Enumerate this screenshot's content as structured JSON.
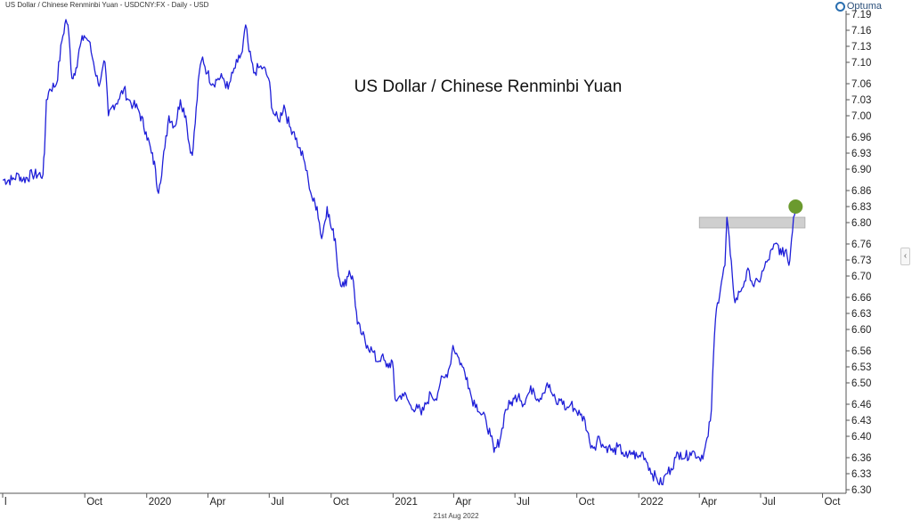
{
  "header": {
    "series_caption": "US Dollar / Chinese Renminbi Yuan - USDCNY:FX - Daily - USD",
    "brand": "Optuma",
    "brand_icon": "optuma-logo-icon"
  },
  "footer": {
    "date": "21st Aug 2022"
  },
  "colors": {
    "line": "#1f1fd8",
    "marker": "#6b9a2e",
    "resistance_band": "#cfcfcf",
    "axis": "#555555"
  },
  "chart_data": {
    "type": "line",
    "title": "US Dollar / Chinese Renminbi Yuan",
    "xlabel": "",
    "ylabel": "",
    "grid": false,
    "legend": "none",
    "ylim": [
      6.3,
      7.19
    ],
    "xlim": [
      "2019-06-01",
      "2022-11-05"
    ],
    "y_ticks": [
      "7.19",
      "7.16",
      "7.13",
      "7.10",
      "7.06",
      "7.03",
      "7.00",
      "6.96",
      "6.93",
      "6.90",
      "6.86",
      "6.83",
      "6.80",
      "6.76",
      "6.73",
      "6.70",
      "6.66",
      "6.63",
      "6.60",
      "6.56",
      "6.53",
      "6.50",
      "6.46",
      "6.43",
      "6.40",
      "6.36",
      "6.33",
      "6.30"
    ],
    "x_ticks": [
      {
        "label": "l",
        "date": "2019-06-01"
      },
      {
        "label": "Oct",
        "date": "2019-10-01"
      },
      {
        "label": "2020",
        "date": "2020-01-01"
      },
      {
        "label": "Apr",
        "date": "2020-04-01"
      },
      {
        "label": "Jul",
        "date": "2020-07-01"
      },
      {
        "label": "Oct",
        "date": "2020-10-01"
      },
      {
        "label": "2021",
        "date": "2021-01-01"
      },
      {
        "label": "Apr",
        "date": "2021-04-01"
      },
      {
        "label": "Jul",
        "date": "2021-07-01"
      },
      {
        "label": "Oct",
        "date": "2021-10-01"
      },
      {
        "label": "2022",
        "date": "2022-01-01"
      },
      {
        "label": "Apr",
        "date": "2022-04-01"
      },
      {
        "label": "Jul",
        "date": "2022-07-01"
      },
      {
        "label": "Oct",
        "date": "2022-10-01"
      }
    ],
    "series": [
      {
        "points": [
          [
            "2019-06-01",
            6.88
          ],
          [
            "2019-06-15",
            6.88
          ],
          [
            "2019-06-25",
            6.89
          ],
          [
            "2019-07-01",
            6.88
          ],
          [
            "2019-07-15",
            6.89
          ],
          [
            "2019-07-31",
            6.89
          ],
          [
            "2019-08-02",
            6.93
          ],
          [
            "2019-08-05",
            7.03
          ],
          [
            "2019-08-10",
            7.05
          ],
          [
            "2019-08-20",
            7.06
          ],
          [
            "2019-08-28",
            7.14
          ],
          [
            "2019-09-03",
            7.18
          ],
          [
            "2019-09-06",
            7.17
          ],
          [
            "2019-09-12",
            7.07
          ],
          [
            "2019-09-18",
            7.09
          ],
          [
            "2019-09-24",
            7.13
          ],
          [
            "2019-09-30",
            7.15
          ],
          [
            "2019-10-07",
            7.14
          ],
          [
            "2019-10-14",
            7.1
          ],
          [
            "2019-10-21",
            7.06
          ],
          [
            "2019-10-25",
            7.07
          ],
          [
            "2019-10-31",
            7.1
          ],
          [
            "2019-11-05",
            7.0
          ],
          [
            "2019-11-12",
            7.02
          ],
          [
            "2019-11-20",
            7.03
          ],
          [
            "2019-11-28",
            7.05
          ],
          [
            "2019-12-05",
            7.03
          ],
          [
            "2019-12-12",
            7.02
          ],
          [
            "2019-12-20",
            7.01
          ],
          [
            "2019-12-31",
            6.97
          ],
          [
            "2020-01-08",
            6.93
          ],
          [
            "2020-01-14",
            6.9
          ],
          [
            "2020-01-17",
            6.86
          ],
          [
            "2020-01-20",
            6.87
          ],
          [
            "2020-01-28",
            6.94
          ],
          [
            "2020-02-03",
            7.0
          ],
          [
            "2020-02-12",
            6.98
          ],
          [
            "2020-02-20",
            7.03
          ],
          [
            "2020-02-28",
            7.0
          ],
          [
            "2020-03-06",
            6.93
          ],
          [
            "2020-03-10",
            6.94
          ],
          [
            "2020-03-19",
            7.08
          ],
          [
            "2020-03-24",
            7.11
          ],
          [
            "2020-03-31",
            7.08
          ],
          [
            "2020-04-08",
            7.06
          ],
          [
            "2020-04-16",
            7.07
          ],
          [
            "2020-04-24",
            7.07
          ],
          [
            "2020-05-01",
            7.05
          ],
          [
            "2020-05-08",
            7.08
          ],
          [
            "2020-05-15",
            7.1
          ],
          [
            "2020-05-22",
            7.12
          ],
          [
            "2020-05-27",
            7.17
          ],
          [
            "2020-06-01",
            7.12
          ],
          [
            "2020-06-08",
            7.08
          ],
          [
            "2020-06-15",
            7.09
          ],
          [
            "2020-06-22",
            7.09
          ],
          [
            "2020-06-30",
            7.07
          ],
          [
            "2020-07-06",
            7.01
          ],
          [
            "2020-07-10",
            7.0
          ],
          [
            "2020-07-15",
            6.99
          ],
          [
            "2020-07-23",
            7.02
          ],
          [
            "2020-07-31",
            6.98
          ],
          [
            "2020-08-07",
            6.97
          ],
          [
            "2020-08-14",
            6.94
          ],
          [
            "2020-08-21",
            6.92
          ],
          [
            "2020-08-28",
            6.88
          ],
          [
            "2020-09-04",
            6.84
          ],
          [
            "2020-09-10",
            6.83
          ],
          [
            "2020-09-17",
            6.77
          ],
          [
            "2020-09-25",
            6.83
          ],
          [
            "2020-10-01",
            6.79
          ],
          [
            "2020-10-07",
            6.77
          ],
          [
            "2020-10-12",
            6.7
          ],
          [
            "2020-10-20",
            6.68
          ],
          [
            "2020-10-28",
            6.71
          ],
          [
            "2020-11-03",
            6.69
          ],
          [
            "2020-11-09",
            6.61
          ],
          [
            "2020-11-16",
            6.59
          ],
          [
            "2020-11-24",
            6.57
          ],
          [
            "2020-12-01",
            6.56
          ],
          [
            "2020-12-08",
            6.54
          ],
          [
            "2020-12-15",
            6.55
          ],
          [
            "2020-12-22",
            6.53
          ],
          [
            "2020-12-31",
            6.54
          ],
          [
            "2021-01-04",
            6.47
          ],
          [
            "2021-01-08",
            6.47
          ],
          [
            "2021-01-15",
            6.48
          ],
          [
            "2021-01-22",
            6.47
          ],
          [
            "2021-01-29",
            6.45
          ],
          [
            "2021-02-05",
            6.46
          ],
          [
            "2021-02-12",
            6.44
          ],
          [
            "2021-02-19",
            6.46
          ],
          [
            "2021-02-26",
            6.48
          ],
          [
            "2021-03-05",
            6.47
          ],
          [
            "2021-03-12",
            6.5
          ],
          [
            "2021-03-19",
            6.51
          ],
          [
            "2021-03-26",
            6.53
          ],
          [
            "2021-03-31",
            6.57
          ],
          [
            "2021-04-07",
            6.55
          ],
          [
            "2021-04-14",
            6.53
          ],
          [
            "2021-04-21",
            6.51
          ],
          [
            "2021-04-28",
            6.47
          ],
          [
            "2021-05-05",
            6.46
          ],
          [
            "2021-05-12",
            6.44
          ],
          [
            "2021-05-19",
            6.43
          ],
          [
            "2021-05-26",
            6.4
          ],
          [
            "2021-05-31",
            6.37
          ],
          [
            "2021-06-04",
            6.38
          ],
          [
            "2021-06-10",
            6.4
          ],
          [
            "2021-06-17",
            6.45
          ],
          [
            "2021-06-24",
            6.46
          ],
          [
            "2021-06-30",
            6.47
          ],
          [
            "2021-07-07",
            6.48
          ],
          [
            "2021-07-14",
            6.46
          ],
          [
            "2021-07-21",
            6.48
          ],
          [
            "2021-07-28",
            6.49
          ],
          [
            "2021-08-04",
            6.47
          ],
          [
            "2021-08-11",
            6.48
          ],
          [
            "2021-08-18",
            6.5
          ],
          [
            "2021-08-25",
            6.48
          ],
          [
            "2021-09-01",
            6.46
          ],
          [
            "2021-09-08",
            6.47
          ],
          [
            "2021-09-15",
            6.45
          ],
          [
            "2021-09-22",
            6.46
          ],
          [
            "2021-09-29",
            6.45
          ],
          [
            "2021-10-06",
            6.44
          ],
          [
            "2021-10-13",
            6.43
          ],
          [
            "2021-10-20",
            6.39
          ],
          [
            "2021-10-27",
            6.38
          ],
          [
            "2021-11-03",
            6.4
          ],
          [
            "2021-11-10",
            6.38
          ],
          [
            "2021-11-17",
            6.38
          ],
          [
            "2021-11-24",
            6.37
          ],
          [
            "2021-12-01",
            6.38
          ],
          [
            "2021-12-08",
            6.37
          ],
          [
            "2021-12-15",
            6.36
          ],
          [
            "2021-12-22",
            6.37
          ],
          [
            "2021-12-31",
            6.36
          ],
          [
            "2022-01-07",
            6.37
          ],
          [
            "2022-01-14",
            6.35
          ],
          [
            "2022-01-21",
            6.33
          ],
          [
            "2022-01-28",
            6.32
          ],
          [
            "2022-02-04",
            6.31
          ],
          [
            "2022-02-11",
            6.33
          ],
          [
            "2022-02-18",
            6.34
          ],
          [
            "2022-02-25",
            6.36
          ],
          [
            "2022-03-04",
            6.37
          ],
          [
            "2022-03-11",
            6.36
          ],
          [
            "2022-03-18",
            6.37
          ],
          [
            "2022-03-25",
            6.37
          ],
          [
            "2022-04-01",
            6.36
          ],
          [
            "2022-04-08",
            6.37
          ],
          [
            "2022-04-14",
            6.4
          ],
          [
            "2022-04-19",
            6.45
          ],
          [
            "2022-04-22",
            6.55
          ],
          [
            "2022-04-25",
            6.62
          ],
          [
            "2022-04-28",
            6.65
          ],
          [
            "2022-05-04",
            6.69
          ],
          [
            "2022-05-09",
            6.72
          ],
          [
            "2022-05-12",
            6.81
          ],
          [
            "2022-05-17",
            6.74
          ],
          [
            "2022-05-20",
            6.7
          ],
          [
            "2022-05-24",
            6.65
          ],
          [
            "2022-05-31",
            6.67
          ],
          [
            "2022-06-07",
            6.69
          ],
          [
            "2022-06-14",
            6.71
          ],
          [
            "2022-06-21",
            6.68
          ],
          [
            "2022-06-28",
            6.69
          ],
          [
            "2022-07-05",
            6.71
          ],
          [
            "2022-07-12",
            6.73
          ],
          [
            "2022-07-19",
            6.75
          ],
          [
            "2022-07-26",
            6.76
          ],
          [
            "2022-08-01",
            6.74
          ],
          [
            "2022-08-08",
            6.75
          ],
          [
            "2022-08-12",
            6.72
          ],
          [
            "2022-08-16",
            6.77
          ],
          [
            "2022-08-19",
            6.81
          ],
          [
            "2022-08-22",
            6.83
          ]
        ]
      }
    ],
    "annotations": {
      "resistance_band": {
        "from": "2022-04-01",
        "to": "2022-09-05",
        "y_low": 6.79,
        "y_high": 6.81
      },
      "marker": {
        "date": "2022-08-22",
        "value": 6.83
      }
    }
  }
}
